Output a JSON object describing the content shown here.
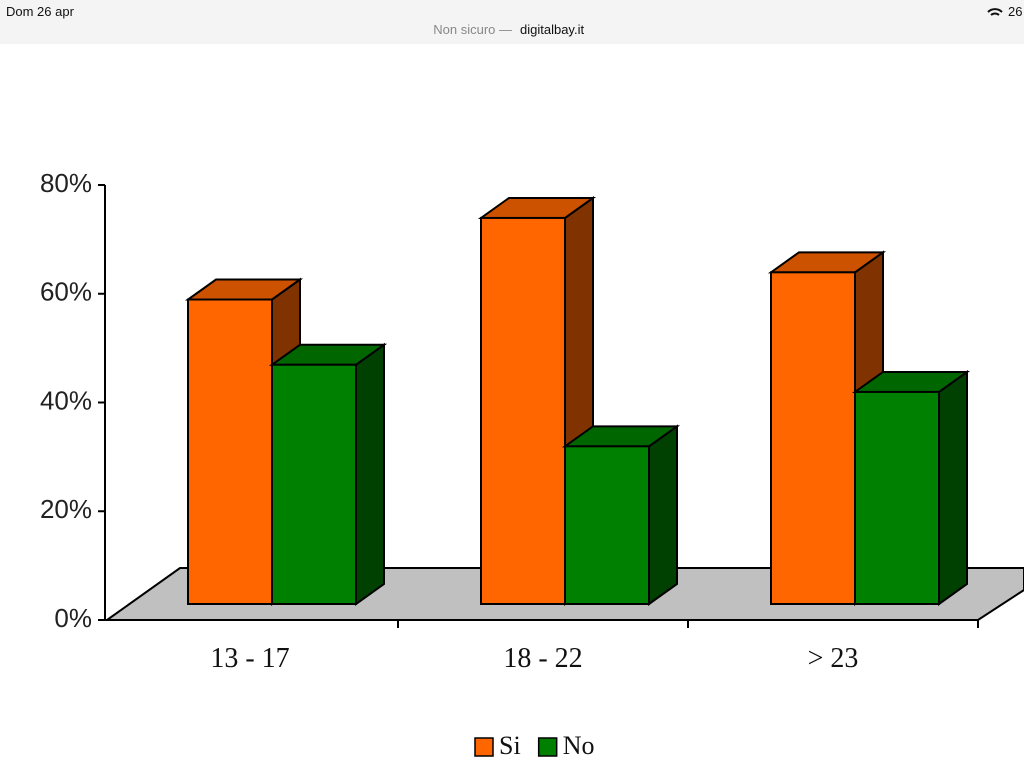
{
  "status_bar": {
    "date": "Dom 26 apr",
    "security": "Non sicuro —",
    "domain": "digitalbay.it",
    "battery": "26"
  },
  "chart_data": {
    "type": "bar3d",
    "categories": [
      "13 - 17",
      "18 - 22",
      "> 23"
    ],
    "series": [
      {
        "name": "Si",
        "color": "#ff6600",
        "values": [
          56,
          71,
          61
        ]
      },
      {
        "name": "No",
        "color": "#008000",
        "values": [
          44,
          29,
          39
        ]
      }
    ],
    "ylim": [
      0,
      80
    ],
    "yticks": [
      {
        "value": 0,
        "label": "0%"
      },
      {
        "value": 20,
        "label": "20%"
      },
      {
        "value": 40,
        "label": "40%"
      },
      {
        "value": 60,
        "label": "60%"
      },
      {
        "value": 80,
        "label": "80%"
      }
    ]
  }
}
